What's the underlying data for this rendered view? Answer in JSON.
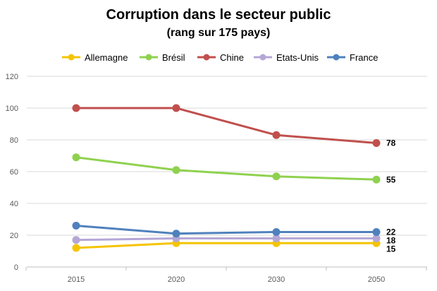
{
  "chart_data": {
    "type": "line",
    "title": "Corruption  dans le secteur public",
    "subtitle": "(rang sur 175 pays)",
    "xlabel": "",
    "ylabel": "",
    "categories": [
      "2015",
      "2020",
      "2030",
      "2050"
    ],
    "ylim": [
      0,
      120
    ],
    "yticks": [
      0,
      20,
      40,
      60,
      80,
      100,
      120
    ],
    "grid": true,
    "legend_position": "top",
    "series": [
      {
        "name": "Allemagne",
        "color": "#f5c400",
        "values": [
          12,
          15,
          15,
          15
        ]
      },
      {
        "name": "Brésil",
        "color": "#8fd14f",
        "values": [
          69,
          61,
          57,
          55
        ]
      },
      {
        "name": "Chine",
        "color": "#c0504d",
        "values": [
          100,
          100,
          83,
          78
        ]
      },
      {
        "name": "Etats-Unis",
        "color": "#b4a7d6",
        "values": [
          17,
          18,
          18,
          18
        ]
      },
      {
        "name": "France",
        "color": "#4f81bd",
        "values": [
          26,
          21,
          22,
          22
        ]
      }
    ],
    "end_labels": [
      {
        "series": "Chine",
        "text": "78"
      },
      {
        "series": "Brésil",
        "text": "55"
      },
      {
        "series": "France",
        "text": "22"
      },
      {
        "series": "Etats-Unis",
        "text": "18"
      },
      {
        "series": "Allemagne",
        "text": "15"
      }
    ]
  }
}
